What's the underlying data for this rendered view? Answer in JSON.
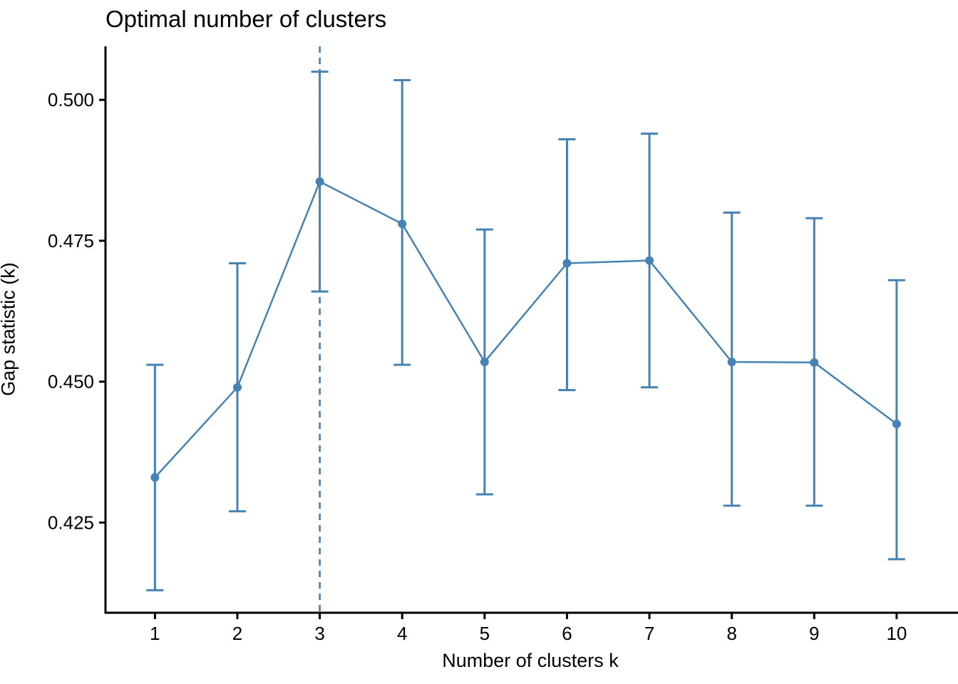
{
  "chart_data": {
    "type": "line",
    "title": "Optimal number of clusters",
    "xlabel": "Number of clusters k",
    "ylabel": "Gap statistic (k)",
    "series": [
      {
        "name": "gap-statistic",
        "x": [
          1,
          2,
          3,
          4,
          5,
          6,
          7,
          8,
          9,
          10
        ],
        "y": [
          0.433,
          0.449,
          0.4855,
          0.478,
          0.4535,
          0.471,
          0.4715,
          0.4535,
          0.4534,
          0.4425
        ],
        "ymin": [
          0.413,
          0.427,
          0.466,
          0.453,
          0.43,
          0.4485,
          0.449,
          0.428,
          0.428,
          0.4185
        ],
        "ymax": [
          0.453,
          0.471,
          0.505,
          0.5035,
          0.477,
          0.493,
          0.494,
          0.48,
          0.479,
          0.468
        ]
      }
    ],
    "optimal_k": 3,
    "x_tick_labels": [
      "1",
      "2",
      "3",
      "4",
      "5",
      "6",
      "7",
      "8",
      "9",
      "10"
    ],
    "x_tick_values": [
      1,
      2,
      3,
      4,
      5,
      6,
      7,
      8,
      9,
      10
    ],
    "y_tick_labels": [
      "0.425",
      "0.450",
      "0.475",
      "0.500"
    ],
    "y_tick_values": [
      0.425,
      0.45,
      0.475,
      0.5
    ],
    "xlim": [
      0.4,
      10.71
    ],
    "ylim": [
      0.409,
      0.5095
    ],
    "grid": false,
    "legend": false,
    "colors": {
      "series": "#4682B4",
      "dashed_line": "#4682B4",
      "axis": "#000000",
      "text": "#000000"
    }
  }
}
